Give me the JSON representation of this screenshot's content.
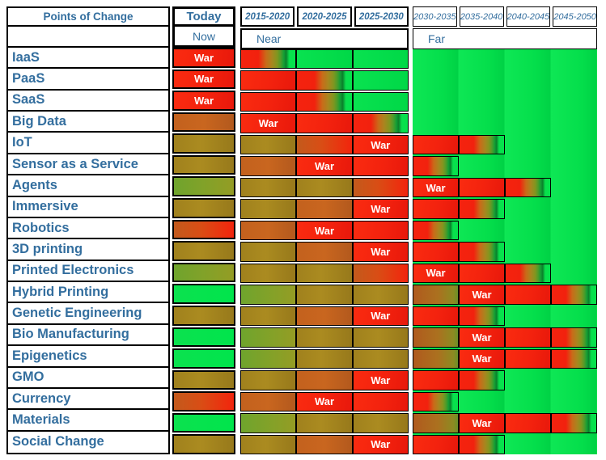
{
  "header": {
    "col_label": "Points of Change",
    "today_label": "Today",
    "now_label": "Now",
    "near_label": "Near",
    "far_label": "Far",
    "near_periods": [
      "2015-2020",
      "2020-2025",
      "2025-2030"
    ],
    "far_periods": [
      "2030-2035",
      "2035-2040",
      "2040-2045",
      "2045-2050"
    ]
  },
  "colors": {
    "text_blue": "#336E9E",
    "war_red": "#F5230F",
    "bright_green": "#04E24C",
    "olive": "#A8861F",
    "orange": "#C3611E",
    "orange_red": "#D94515",
    "green_olive": "#7DA42C",
    "border_black": "#000000"
  },
  "chart_data": {
    "type": "heatmap",
    "title": "Points of Change",
    "war_label": "War",
    "columns": [
      "Today",
      "2015-2020",
      "2020-2025",
      "2025-2030",
      "2030-2035",
      "2035-2040",
      "2040-2045",
      "2045-2050"
    ],
    "column_groups": [
      {
        "label": "Now",
        "columns": [
          "Today"
        ]
      },
      {
        "label": "Near",
        "columns": [
          "2015-2020",
          "2020-2025",
          "2025-2030"
        ]
      },
      {
        "label": "Far",
        "columns": [
          "2030-2035",
          "2035-2040",
          "2040-2045",
          "2045-2050"
        ]
      }
    ],
    "state_legend": {
      "war": "bright red cell with white 'War' text",
      "red": "bright red cell",
      "r2g": "gradient transition from red through olive to bright green",
      "green": "bright green (stable)",
      "brightgreen": "bright green Today cell",
      "olive": "olive/brown cell",
      "orange": "orange/brown cell",
      "orangered": "orange blending to red",
      "greenolive": "green blending to olive",
      "orangeolive": "orange blending to olive-green"
    },
    "rows": [
      {
        "label": "IaaS",
        "cells": [
          "war",
          "r2g",
          "green",
          "green",
          "green",
          "green",
          "green",
          "green"
        ]
      },
      {
        "label": "PaaS",
        "cells": [
          "war",
          "red",
          "r2g",
          "green",
          "green",
          "green",
          "green",
          "green"
        ]
      },
      {
        "label": "SaaS",
        "cells": [
          "war",
          "red",
          "r2g",
          "green",
          "green",
          "green",
          "green",
          "green"
        ]
      },
      {
        "label": "Big Data",
        "cells": [
          "orange",
          "war",
          "red",
          "r2g",
          "green",
          "green",
          "green",
          "green"
        ]
      },
      {
        "label": "IoT",
        "cells": [
          "olive",
          "olive",
          "orangered",
          "war",
          "red",
          "r2g",
          "green",
          "green"
        ]
      },
      {
        "label": "Sensor as a Service",
        "cells": [
          "olive",
          "orange",
          "war",
          "red",
          "r2g",
          "green",
          "green",
          "green"
        ]
      },
      {
        "label": "Agents",
        "cells": [
          "greenolive",
          "olive",
          "olive",
          "orangered",
          "war",
          "red",
          "r2g",
          "green"
        ]
      },
      {
        "label": "Immersive",
        "cells": [
          "olive",
          "olive",
          "orange",
          "war",
          "red",
          "r2g",
          "green",
          "green"
        ]
      },
      {
        "label": "Robotics",
        "cells": [
          "orangered",
          "orange",
          "war",
          "red",
          "r2g",
          "green",
          "green",
          "green"
        ]
      },
      {
        "label": "3D printing",
        "cells": [
          "olive",
          "olive",
          "orange",
          "war",
          "red",
          "r2g",
          "green",
          "green"
        ]
      },
      {
        "label": "Printed Electronics",
        "cells": [
          "greenolive",
          "olive",
          "olive",
          "orangered",
          "war",
          "red",
          "r2g",
          "green"
        ]
      },
      {
        "label": "Hybrid Printing",
        "cells": [
          "brightgreen",
          "greenolive",
          "olive",
          "olive",
          "orangeolive",
          "war",
          "red",
          "r2g"
        ]
      },
      {
        "label": "Genetic Engineering",
        "cells": [
          "olive",
          "olive",
          "orange",
          "war",
          "red",
          "r2g",
          "green",
          "green"
        ]
      },
      {
        "label": "Bio Manufacturing",
        "cells": [
          "brightgreen",
          "greenolive",
          "olive",
          "olive",
          "orangeolive",
          "war",
          "red",
          "r2g"
        ]
      },
      {
        "label": "Epigenetics",
        "cells": [
          "brightgreen",
          "greenolive",
          "olive",
          "olive",
          "orangeolive",
          "war",
          "red",
          "r2g"
        ]
      },
      {
        "label": "GMO",
        "cells": [
          "olive",
          "olive",
          "orange",
          "war",
          "red",
          "r2g",
          "green",
          "green"
        ]
      },
      {
        "label": "Currency",
        "cells": [
          "orangered",
          "orange",
          "war",
          "red",
          "r2g",
          "green",
          "green",
          "green"
        ]
      },
      {
        "label": "Materials",
        "cells": [
          "brightgreen",
          "greenolive",
          "olive",
          "olive",
          "orangeolive",
          "war",
          "red",
          "r2g"
        ]
      },
      {
        "label": "Social Change",
        "cells": [
          "olive",
          "olive",
          "orange",
          "war",
          "red",
          "r2g",
          "green",
          "green"
        ]
      }
    ]
  }
}
